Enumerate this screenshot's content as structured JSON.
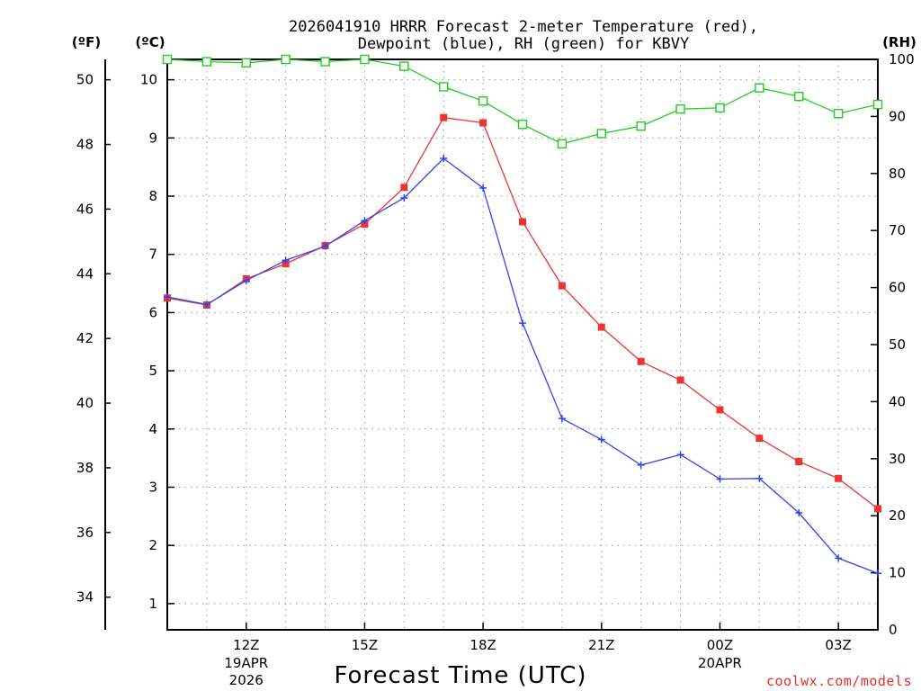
{
  "chart_data": {
    "type": "line",
    "title_line1": "2026041910 HRRR Forecast 2-meter Temperature (red),",
    "title_line2": "Dewpoint (blue), RH (green) for KBVY",
    "xlabel": "Forecast Time (UTC)",
    "credit": "coolwx.com/models",
    "units": {
      "fahrenheit": "(ºF)",
      "celsius": "(ºC)",
      "rh": "(RH)"
    },
    "hours": [
      10,
      11,
      12,
      13,
      14,
      15,
      16,
      17,
      18,
      19,
      20,
      21,
      22,
      23,
      24,
      25,
      26,
      27,
      28
    ],
    "xlim": [
      10,
      28
    ],
    "x_ticks": [
      {
        "hour": 12,
        "label": "12Z",
        "date": "19APR",
        "year": "2026"
      },
      {
        "hour": 15,
        "label": "15Z"
      },
      {
        "hour": 18,
        "label": "18Z"
      },
      {
        "hour": 21,
        "label": "21Z"
      },
      {
        "hour": 24,
        "label": "00Z",
        "date": "20APR"
      },
      {
        "hour": 27,
        "label": "03Z"
      }
    ],
    "ylim_celsius": [
      0.55,
      10.35
    ],
    "y_ticks_celsius": [
      "1",
      "2",
      "3",
      "4",
      "5",
      "6",
      "7",
      "8",
      "9",
      "10"
    ],
    "y_ticks_fahrenheit": [
      "34",
      "36",
      "38",
      "40",
      "42",
      "44",
      "46",
      "48",
      "50"
    ],
    "ylim_rh": [
      0,
      100
    ],
    "y_ticks_rh": [
      "0",
      "10",
      "20",
      "30",
      "40",
      "50",
      "60",
      "70",
      "80",
      "90",
      "100"
    ],
    "series": [
      {
        "name": "Temperature",
        "unit": "C",
        "color": "#ee3333",
        "marker": "filled-square",
        "values": [
          6.25,
          6.13,
          6.58,
          6.84,
          7.15,
          7.52,
          8.15,
          9.35,
          9.26,
          7.56,
          6.46,
          5.75,
          5.16,
          4.84,
          4.33,
          3.84,
          3.44,
          3.15,
          2.63
        ]
      },
      {
        "name": "Dewpoint",
        "unit": "C",
        "color": "#3344ee",
        "marker": "plus",
        "values": [
          6.27,
          6.14,
          6.55,
          6.9,
          7.14,
          7.58,
          7.97,
          8.65,
          8.14,
          5.82,
          4.18,
          3.82,
          3.38,
          3.56,
          3.14,
          3.15,
          2.56,
          1.78,
          1.52
        ]
      },
      {
        "name": "RH",
        "unit": "%",
        "color": "#22cc22",
        "marker": "open-square",
        "values": [
          100,
          99.6,
          99.4,
          100,
          99.6,
          100,
          98.8,
          95.2,
          92.7,
          88.6,
          85.2,
          87.0,
          88.3,
          91.3,
          91.5,
          95.0,
          93.5,
          90.5,
          92.1
        ]
      }
    ]
  }
}
